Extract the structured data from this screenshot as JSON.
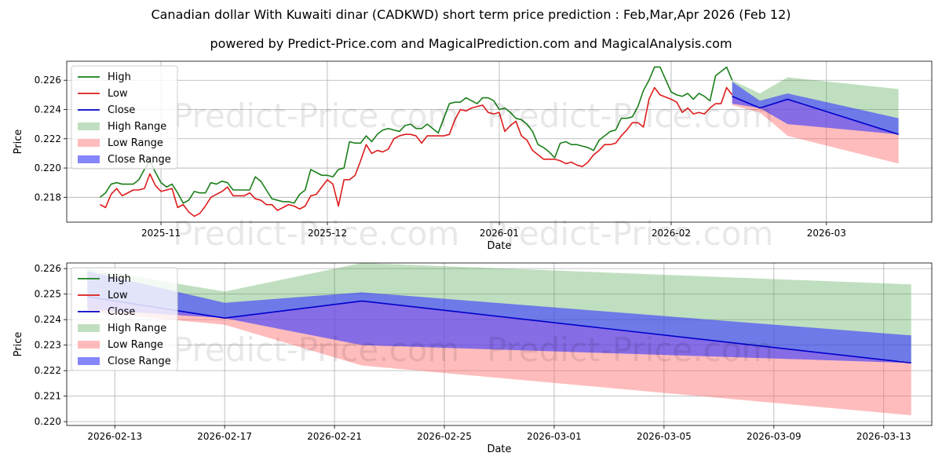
{
  "title": "Canadian dollar With Kuwaiti dinar (CADKWD) short term price prediction : Feb,Mar,Apr 2026 (Feb 12)",
  "subtitle": "powered by Predict-Price.com and MagicalPrediction.com and MagicalAnalysis.com",
  "watermark": "Predict-Price.com",
  "colors": {
    "high": "#1a7f1a",
    "low": "#dd1c1c",
    "close": "#0000cc",
    "high_range": "#3a9a3a",
    "low_range": "#ff6b6b",
    "close_range": "#3c3cff"
  },
  "chart_data": [
    {
      "type": "line",
      "title": "",
      "xlabel": "Date",
      "ylabel": "Price",
      "xlim": [
        "2025-10-15",
        "2026-03-20"
      ],
      "ylim": [
        0.2163,
        0.2273
      ],
      "yticks": [
        0.218,
        0.22,
        0.222,
        0.224,
        0.226
      ],
      "ytick_labels": [
        "0.218",
        "0.220",
        "0.222",
        "0.224",
        "0.226"
      ],
      "xticks": [
        "2025-11-01",
        "2025-12-01",
        "2026-01-01",
        "2026-02-01",
        "2026-03-01"
      ],
      "xtick_labels": [
        "2025-11",
        "2025-12",
        "2026-01",
        "2026-02",
        "2026-03"
      ],
      "grid": true,
      "legend_position": "top-left",
      "legend": [
        "High",
        "Low",
        "Close",
        "High Range",
        "Low Range",
        "Close Range"
      ],
      "series": [
        {
          "name": "High",
          "x": [
            "2025-10-21",
            "2025-10-22",
            "2025-10-23",
            "2025-10-24",
            "2025-10-25",
            "2025-10-26",
            "2025-10-27",
            "2025-10-28",
            "2025-10-29",
            "2025-10-30",
            "2025-10-31",
            "2025-11-01",
            "2025-11-02",
            "2025-11-03",
            "2025-11-04",
            "2025-11-05",
            "2025-11-06",
            "2025-11-07",
            "2025-11-08",
            "2025-11-09",
            "2025-11-10",
            "2025-11-11",
            "2025-11-12",
            "2025-11-13",
            "2025-11-14",
            "2025-11-15",
            "2025-11-16",
            "2025-11-17",
            "2025-11-18",
            "2025-11-19",
            "2025-11-20",
            "2025-11-21",
            "2025-11-22",
            "2025-11-23",
            "2025-11-24",
            "2025-11-25",
            "2025-11-26",
            "2025-11-27",
            "2025-11-28",
            "2025-11-29",
            "2025-11-30",
            "2025-12-01",
            "2025-12-02",
            "2025-12-03",
            "2025-12-04",
            "2025-12-05",
            "2025-12-06",
            "2025-12-07",
            "2025-12-08",
            "2025-12-09",
            "2025-12-10",
            "2025-12-11",
            "2025-12-12",
            "2025-12-13",
            "2025-12-14",
            "2025-12-15",
            "2025-12-16",
            "2025-12-17",
            "2025-12-18",
            "2025-12-19",
            "2025-12-20",
            "2025-12-21",
            "2025-12-22",
            "2025-12-23",
            "2025-12-24",
            "2025-12-25",
            "2025-12-26",
            "2025-12-27",
            "2025-12-28",
            "2025-12-29",
            "2025-12-30",
            "2025-12-31",
            "2026-01-01",
            "2026-01-02",
            "2026-01-03",
            "2026-01-04",
            "2026-01-05",
            "2026-01-06",
            "2026-01-07",
            "2026-01-08",
            "2026-01-09",
            "2026-01-10",
            "2026-01-11",
            "2026-01-12",
            "2026-01-13",
            "2026-01-14",
            "2026-01-15",
            "2026-01-16",
            "2026-01-17",
            "2026-01-18",
            "2026-01-19",
            "2026-01-20",
            "2026-01-21",
            "2026-01-22",
            "2026-01-23",
            "2026-01-24",
            "2026-01-25",
            "2026-01-26",
            "2026-01-27",
            "2026-01-28",
            "2026-01-29",
            "2026-01-30",
            "2026-02-01",
            "2026-02-02",
            "2026-02-03",
            "2026-02-04",
            "2026-02-05",
            "2026-02-06",
            "2026-02-07",
            "2026-02-08",
            "2026-02-09",
            "2026-02-10",
            "2026-02-11",
            "2026-02-12"
          ],
          "values": [
            0.218,
            0.2183,
            0.2189,
            0.219,
            0.2189,
            0.2189,
            0.2189,
            0.2192,
            0.2199,
            0.2205,
            0.2197,
            0.219,
            0.2187,
            0.2189,
            0.2183,
            0.2176,
            0.2178,
            0.2184,
            0.2183,
            0.2183,
            0.219,
            0.2189,
            0.2191,
            0.219,
            0.2185,
            0.2185,
            0.2185,
            0.2185,
            0.2194,
            0.2191,
            0.2185,
            0.2179,
            0.2178,
            0.2177,
            0.2177,
            0.2176,
            0.2182,
            0.2185,
            0.2199,
            0.2197,
            0.2195,
            0.2195,
            0.2194,
            0.2199,
            0.22,
            0.2218,
            0.2217,
            0.2217,
            0.2222,
            0.2218,
            0.2223,
            0.2226,
            0.2227,
            0.2226,
            0.2225,
            0.2229,
            0.223,
            0.2227,
            0.2227,
            0.223,
            0.2227,
            0.2224,
            0.2234,
            0.2244,
            0.2245,
            0.2245,
            0.2248,
            0.2246,
            0.2244,
            0.2248,
            0.2248,
            0.2246,
            0.224,
            0.2241,
            0.2238,
            0.2234,
            0.2233,
            0.223,
            0.2225,
            0.2216,
            0.2214,
            0.2211,
            0.2207,
            0.2217,
            0.2218,
            0.2216,
            0.2216,
            0.2215,
            0.2214,
            0.2212,
            0.2219,
            0.2222,
            0.2225,
            0.2226,
            0.2234,
            0.2234,
            0.2235,
            0.2242,
            0.2253,
            0.226,
            0.2269,
            0.2269,
            0.2252,
            0.225,
            0.2249,
            0.2251,
            0.2247,
            0.2251,
            0.2249,
            0.2246,
            0.2263,
            0.2266,
            0.2269,
            0.226
          ]
        },
        {
          "name": "Low",
          "x": [
            "2025-10-21",
            "2025-10-22",
            "2025-10-23",
            "2025-10-24",
            "2025-10-25",
            "2025-10-26",
            "2025-10-27",
            "2025-10-28",
            "2025-10-29",
            "2025-10-30",
            "2025-10-31",
            "2025-11-01",
            "2025-11-02",
            "2025-11-03",
            "2025-11-04",
            "2025-11-05",
            "2025-11-06",
            "2025-11-07",
            "2025-11-08",
            "2025-11-09",
            "2025-11-10",
            "2025-11-11",
            "2025-11-12",
            "2025-11-13",
            "2025-11-14",
            "2025-11-15",
            "2025-11-16",
            "2025-11-17",
            "2025-11-18",
            "2025-11-19",
            "2025-11-20",
            "2025-11-21",
            "2025-11-22",
            "2025-11-23",
            "2025-11-24",
            "2025-11-25",
            "2025-11-26",
            "2025-11-27",
            "2025-11-28",
            "2025-11-29",
            "2025-11-30",
            "2025-12-01",
            "2025-12-02",
            "2025-12-03",
            "2025-12-04",
            "2025-12-05",
            "2025-12-06",
            "2025-12-07",
            "2025-12-08",
            "2025-12-09",
            "2025-12-10",
            "2025-12-11",
            "2025-12-12",
            "2025-12-13",
            "2025-12-14",
            "2025-12-15",
            "2025-12-16",
            "2025-12-17",
            "2025-12-18",
            "2025-12-19",
            "2025-12-20",
            "2025-12-21",
            "2025-12-22",
            "2025-12-23",
            "2025-12-24",
            "2025-12-25",
            "2025-12-26",
            "2025-12-27",
            "2025-12-28",
            "2025-12-29",
            "2025-12-30",
            "2025-12-31",
            "2026-01-01",
            "2026-01-02",
            "2026-01-03",
            "2026-01-04",
            "2026-01-05",
            "2026-01-06",
            "2026-01-07",
            "2026-01-08",
            "2026-01-09",
            "2026-01-10",
            "2026-01-11",
            "2026-01-12",
            "2026-01-13",
            "2026-01-14",
            "2026-01-15",
            "2026-01-16",
            "2026-01-17",
            "2026-01-18",
            "2026-01-19",
            "2026-01-20",
            "2026-01-21",
            "2026-01-22",
            "2026-01-23",
            "2026-01-24",
            "2026-01-25",
            "2026-01-26",
            "2026-01-27",
            "2026-01-28",
            "2026-01-29",
            "2026-01-30",
            "2026-02-01",
            "2026-02-02",
            "2026-02-03",
            "2026-02-04",
            "2026-02-05",
            "2026-02-06",
            "2026-02-07",
            "2026-02-08",
            "2026-02-09",
            "2026-02-10",
            "2026-02-11",
            "2026-02-12"
          ],
          "values": [
            0.2175,
            0.2173,
            0.2182,
            0.2186,
            0.2181,
            0.2183,
            0.2185,
            0.2185,
            0.2186,
            0.2196,
            0.2188,
            0.2184,
            0.2185,
            0.2186,
            0.2173,
            0.2175,
            0.217,
            0.2167,
            0.2169,
            0.2174,
            0.218,
            0.2182,
            0.2184,
            0.2187,
            0.2181,
            0.2181,
            0.2181,
            0.2183,
            0.2179,
            0.2178,
            0.2175,
            0.2175,
            0.2171,
            0.2173,
            0.2175,
            0.2174,
            0.2172,
            0.2174,
            0.2181,
            0.2182,
            0.2187,
            0.2192,
            0.2189,
            0.2174,
            0.2192,
            0.2192,
            0.2195,
            0.2205,
            0.2216,
            0.221,
            0.2212,
            0.2211,
            0.2213,
            0.222,
            0.2222,
            0.2223,
            0.2223,
            0.2222,
            0.2217,
            0.2222,
            0.2222,
            0.2222,
            0.2222,
            0.2223,
            0.2233,
            0.224,
            0.2239,
            0.2241,
            0.2242,
            0.2243,
            0.2238,
            0.2237,
            0.2238,
            0.2225,
            0.2229,
            0.2232,
            0.2222,
            0.2219,
            0.2212,
            0.2209,
            0.2206,
            0.2206,
            0.2206,
            0.2205,
            0.2203,
            0.2204,
            0.2202,
            0.2201,
            0.2204,
            0.2209,
            0.2212,
            0.2216,
            0.2216,
            0.2217,
            0.2222,
            0.2226,
            0.2231,
            0.2231,
            0.2228,
            0.2247,
            0.2255,
            0.225,
            0.2247,
            0.2245,
            0.2238,
            0.2241,
            0.2237,
            0.2238,
            0.2237,
            0.2241,
            0.2244,
            0.2244,
            0.2255,
            0.225
          ]
        },
        {
          "name": "Close",
          "x": [
            "2026-02-12",
            "2026-02-17",
            "2026-02-22",
            "2026-03-14"
          ],
          "values": [
            0.2249,
            0.2241,
            0.2247,
            0.2223
          ]
        },
        {
          "name": "High Range",
          "x": [
            "2026-02-12",
            "2026-02-17",
            "2026-02-22",
            "2026-03-14"
          ],
          "upper": [
            0.226,
            0.2251,
            0.2262,
            0.2254
          ],
          "lower": [
            0.2249,
            0.2241,
            0.2247,
            0.2223
          ]
        },
        {
          "name": "Low Range",
          "x": [
            "2026-02-12",
            "2026-02-17",
            "2026-02-22",
            "2026-03-14"
          ],
          "upper": [
            0.2249,
            0.2241,
            0.2247,
            0.2223
          ],
          "lower": [
            0.2243,
            0.2238,
            0.2222,
            0.2203
          ]
        },
        {
          "name": "Close Range",
          "x": [
            "2026-02-12",
            "2026-02-17",
            "2026-02-22",
            "2026-03-14"
          ],
          "upper": [
            0.2259,
            0.2246,
            0.2251,
            0.2234
          ],
          "lower": [
            0.2244,
            0.2241,
            0.223,
            0.2223
          ]
        }
      ]
    },
    {
      "type": "line",
      "title": "",
      "xlabel": "Date",
      "ylabel": "Price",
      "xlim": [
        "2026-02-11.25",
        "2026-03-14.75"
      ],
      "ylim": [
        0.21985,
        0.22622
      ],
      "yticks": [
        0.22,
        0.221,
        0.222,
        0.223,
        0.224,
        0.225,
        0.226
      ],
      "ytick_labels": [
        "0.220",
        "0.221",
        "0.222",
        "0.223",
        "0.224",
        "0.225",
        "0.226"
      ],
      "xticks": [
        "2026-02-13",
        "2026-02-17",
        "2026-02-21",
        "2026-02-25",
        "2026-03-01",
        "2026-03-05",
        "2026-03-09",
        "2026-03-13"
      ],
      "xtick_labels": [
        "2026-02-13",
        "2026-02-17",
        "2026-02-21",
        "2026-02-25",
        "2026-03-01",
        "2026-03-05",
        "2026-03-09",
        "2026-03-13"
      ],
      "grid": true,
      "legend_position": "top-left",
      "legend": [
        "High",
        "Low",
        "Close",
        "High Range",
        "Low Range",
        "Close Range"
      ],
      "series": [
        {
          "name": "Close",
          "x": [
            "2026-02-12",
            "2026-02-17",
            "2026-02-22",
            "2026-03-14"
          ],
          "values": [
            0.2249,
            0.22406,
            0.22473,
            0.2223
          ]
        },
        {
          "name": "High Range",
          "x": [
            "2026-02-12",
            "2026-02-17",
            "2026-02-22",
            "2026-03-14"
          ],
          "upper": [
            0.226,
            0.2251,
            0.22622,
            0.22538
          ],
          "lower": [
            0.2249,
            0.22406,
            0.22473,
            0.2223
          ]
        },
        {
          "name": "Low Range",
          "x": [
            "2026-02-12",
            "2026-02-17",
            "2026-02-22",
            "2026-03-14"
          ],
          "upper": [
            0.2249,
            0.22406,
            0.22473,
            0.2223
          ],
          "lower": [
            0.2243,
            0.2238,
            0.2222,
            0.22025
          ]
        },
        {
          "name": "Close Range",
          "x": [
            "2026-02-12",
            "2026-02-17",
            "2026-02-22",
            "2026-03-14"
          ],
          "upper": [
            0.2259,
            0.22466,
            0.22507,
            0.22338
          ],
          "lower": [
            0.2244,
            0.22406,
            0.223,
            0.2223
          ]
        }
      ]
    }
  ]
}
